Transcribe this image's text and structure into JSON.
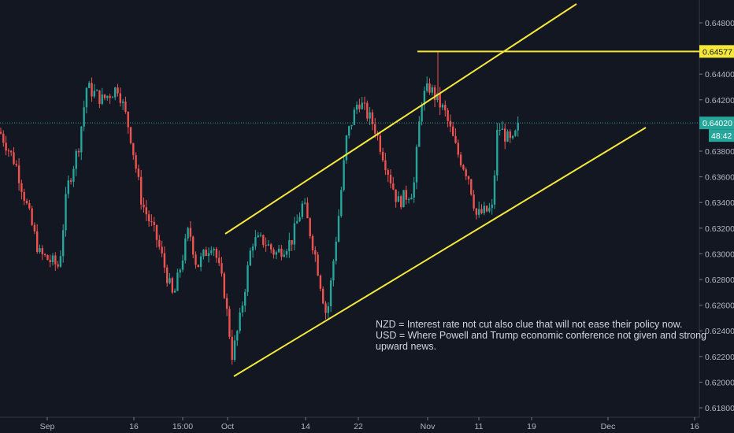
{
  "chart_data": {
    "type": "candlestick",
    "symbol_pair": "NZD/USD",
    "y_axis": {
      "ticks": [
        "0.64800",
        "0.64400",
        "0.64200",
        "0.63800",
        "0.63600",
        "0.63400",
        "0.63200",
        "0.63000",
        "0.62800",
        "0.62600",
        "0.62400",
        "0.62200",
        "0.62000",
        "0.61800"
      ],
      "ylim": [
        0.6178,
        0.6497
      ]
    },
    "x_axis": {
      "ticks": [
        "Sep",
        "16",
        "15:00",
        "Oct",
        "14",
        "22",
        "Nov",
        "11",
        "19",
        "Dec",
        "16"
      ]
    },
    "price_path": [
      0.6395,
      0.637,
      0.63,
      0.629,
      0.635,
      0.6385,
      0.643,
      0.642,
      0.643,
      0.6395,
      0.634,
      0.631,
      0.6265,
      0.632,
      0.629,
      0.631,
      0.627,
      0.622,
      0.625,
      0.631,
      0.631,
      0.63,
      0.631,
      0.634,
      0.63,
      0.625,
      0.633,
      0.639,
      0.642,
      0.64,
      0.637,
      0.634,
      0.635,
      0.642,
      0.643,
      0.641,
      0.638,
      0.636,
      0.633,
      0.6335,
      0.64,
      0.6385,
      0.6402
    ],
    "horizontal_level": {
      "value": "0.64577",
      "color": "#f5e83a"
    },
    "last_price": {
      "value": "0.64020",
      "countdown": "48:42",
      "color": "#26a69a"
    },
    "channel_color": "#f5e83a",
    "up_color": "#26a69a",
    "down_color": "#ef5350",
    "annotation": [
      "NZD = Interest rate not cut also clue that will not ease their policy now.",
      "USD = Where Powell and Trump economic conference not given and strong",
      "upward news."
    ]
  }
}
